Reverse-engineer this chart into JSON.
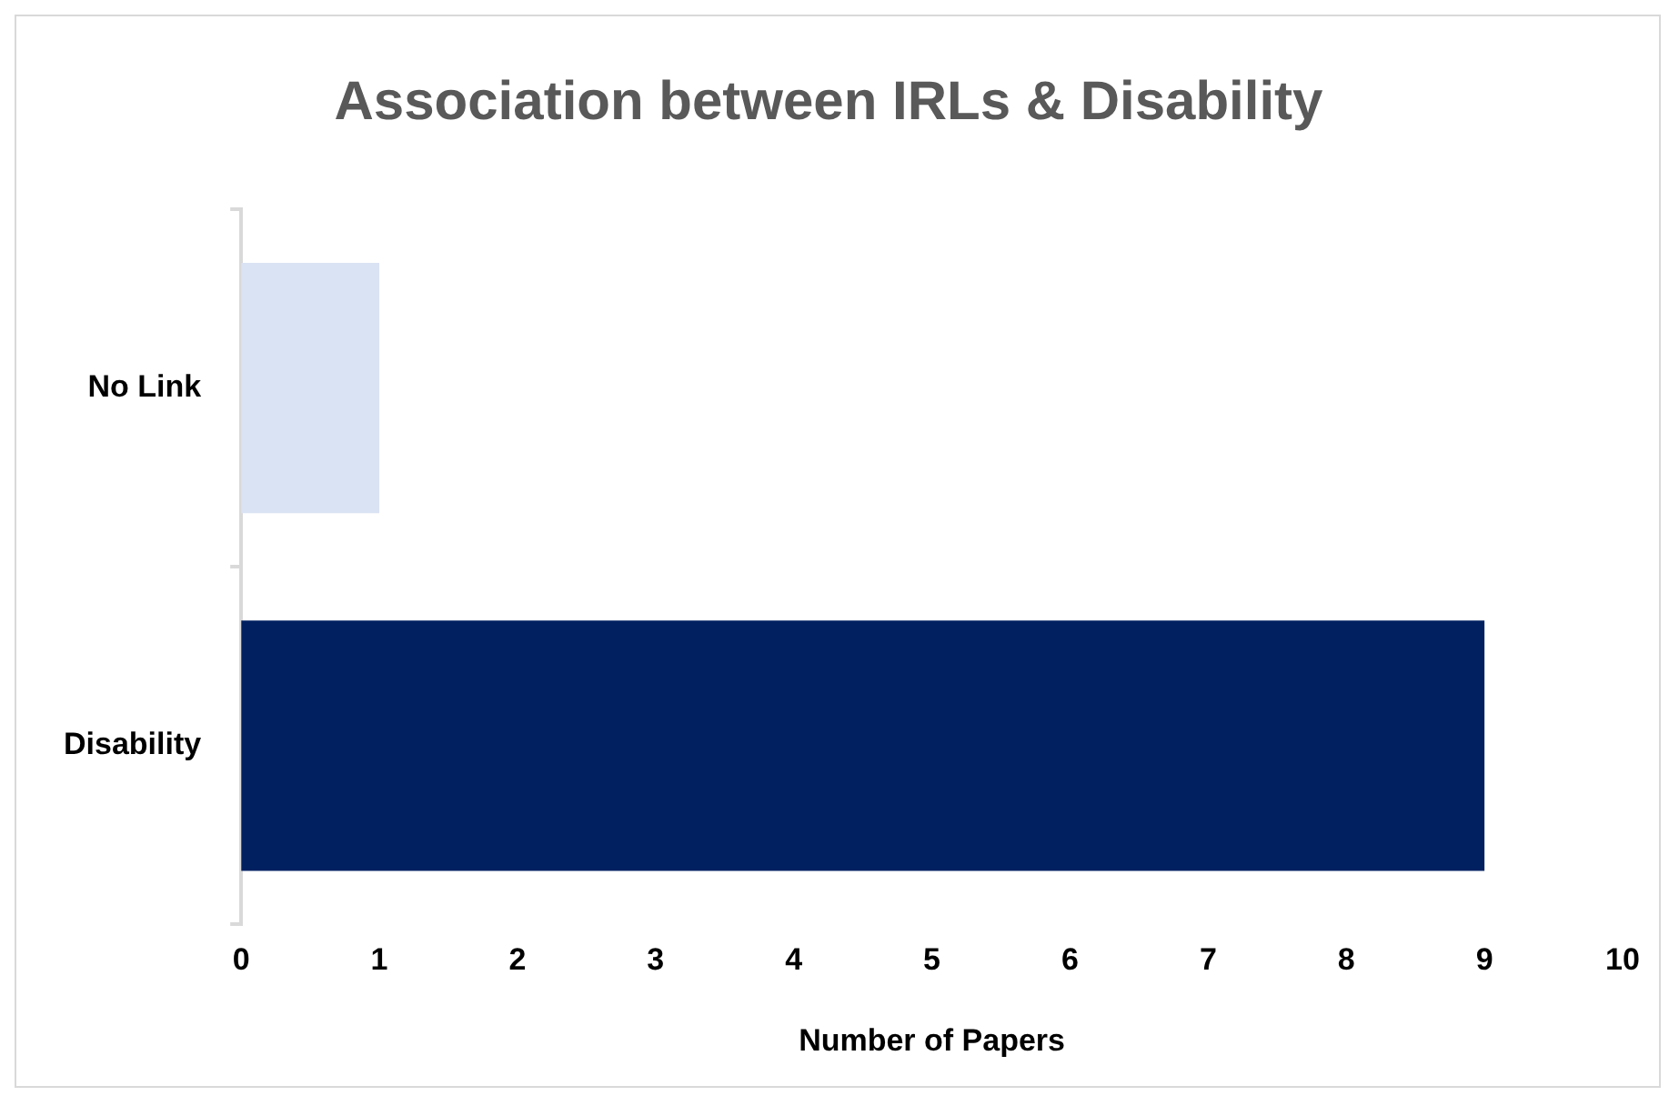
{
  "chart_data": {
    "type": "bar",
    "orientation": "horizontal",
    "title": "Association between IRLs & Disability",
    "xlabel": "Number of Papers",
    "categories": [
      "No Link",
      "Disability"
    ],
    "values": [
      1,
      9
    ],
    "colors": [
      "#dae3f3",
      "#002060"
    ],
    "xlim": [
      0,
      10
    ],
    "xticks": [
      0,
      1,
      2,
      3,
      4,
      5,
      6,
      7,
      8,
      9,
      10
    ],
    "legend": false
  }
}
